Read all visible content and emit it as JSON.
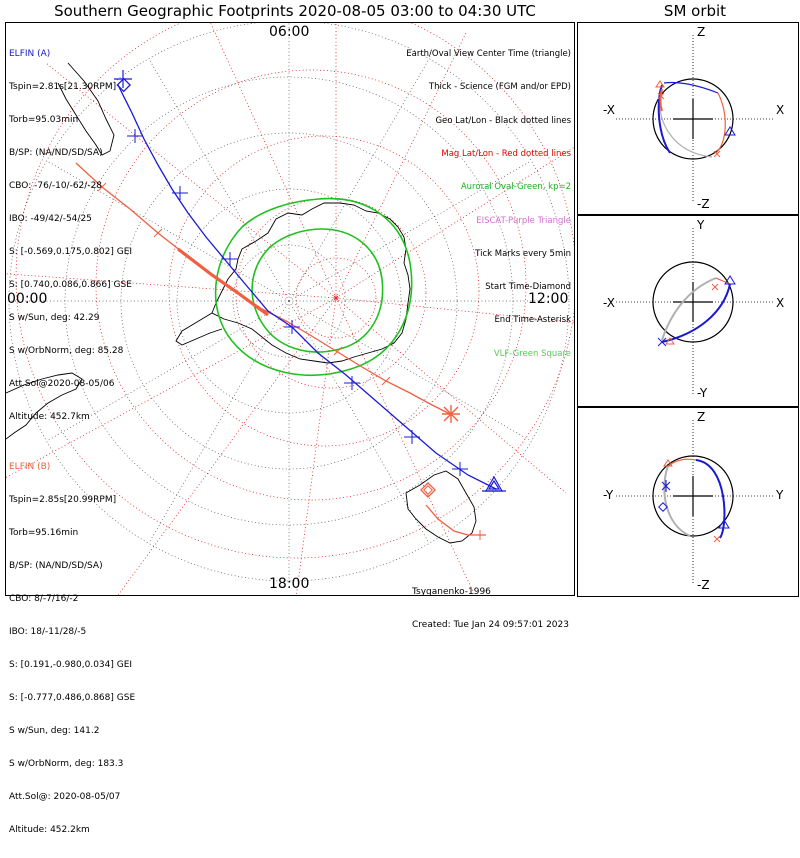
{
  "title": "Southern Geographic Footprints 2020-08-05 03:00 to 04:30 UTC",
  "sm_title": "SM orbit",
  "time_labels": {
    "top": "06:00",
    "left": "00:00",
    "right": "12:00",
    "bottom": "18:00"
  },
  "elfin_a": {
    "name": "ELFIN (A)",
    "color": "#1a1ad6",
    "lines": [
      "Tspin=2.81s[21.30RPM]",
      "Torb=95.03min",
      "B/SP: (NA/ND/SD/SA)",
      "CBO: -76/-10/-62/-28",
      "IBO: -49/42/-54/25",
      "S: [-0.569,0.175,0.802] GEI",
      "S: [0.740,0.086,0.866] GSE",
      "S w/Sun, deg: 42.29",
      "S w/OrbNorm, deg: 85.28",
      "Att.Sol@2020-08-05/06",
      "Altitude: 452.7km"
    ]
  },
  "elfin_b": {
    "name": "ELFIN (B)",
    "color": "#f06040",
    "lines": [
      "Tspin=2.85s[20.99RPM]",
      "Torb=95.16min",
      "B/SP: (NA/ND/SD/SA)",
      "CBO: 8/-7/16/-2",
      "IBO: 18/-11/28/-5",
      "S: [0.191,-0.980,0.034] GEI",
      "S: [-0.777,0.486,0.868] GSE",
      "S w/Sun, deg: 141.2",
      "S w/OrbNorm, deg: 183.3",
      "Att.Sol@: 2020-08-05/07",
      "Altitude: 452.2km"
    ]
  },
  "legend": [
    {
      "text": "Earth/Oval View Center Time (triangle)",
      "color": "#000000"
    },
    {
      "text": "Thick - Science (FGM and/or EPD)",
      "color": "#000000"
    },
    {
      "text": "Geo Lat/Lon - Black dotted lines",
      "color": "#000000"
    },
    {
      "text": "Mag Lat/Lon - Red dotted lines",
      "color": "#e00000"
    },
    {
      "text": "Auroral Oval-Green, kp=2",
      "color": "#20b020"
    },
    {
      "text": "EISCAT-Purple Triangle",
      "color": "#d070d0"
    },
    {
      "text": "Tick Marks every 5min",
      "color": "#000000"
    },
    {
      "text": "Start Time-Diamond",
      "color": "#000000"
    },
    {
      "text": "End Time-Asterisk",
      "color": "#000000"
    },
    {
      "text": "VLF-Green Square",
      "color": "#50d050"
    }
  ],
  "footer": {
    "model": "Tsyganenko-1996",
    "created": "Created: Tue Jan 24 09:57:01 2023"
  },
  "sm_panels": [
    {
      "top": "Z",
      "bottom": "-Z",
      "left": "-X",
      "right": "X"
    },
    {
      "top": "Y",
      "bottom": "-Y",
      "left": "-X",
      "right": "X"
    },
    {
      "top": "Z",
      "bottom": "-Z",
      "left": "-Y",
      "right": "Y"
    }
  ],
  "colors": {
    "orbit_a": "#1a1ad6",
    "orbit_b": "#f06040",
    "auroral_oval": "#20c020",
    "mag_grid": "#e00000",
    "sm_orbit_gray": "#b0b0b0"
  }
}
